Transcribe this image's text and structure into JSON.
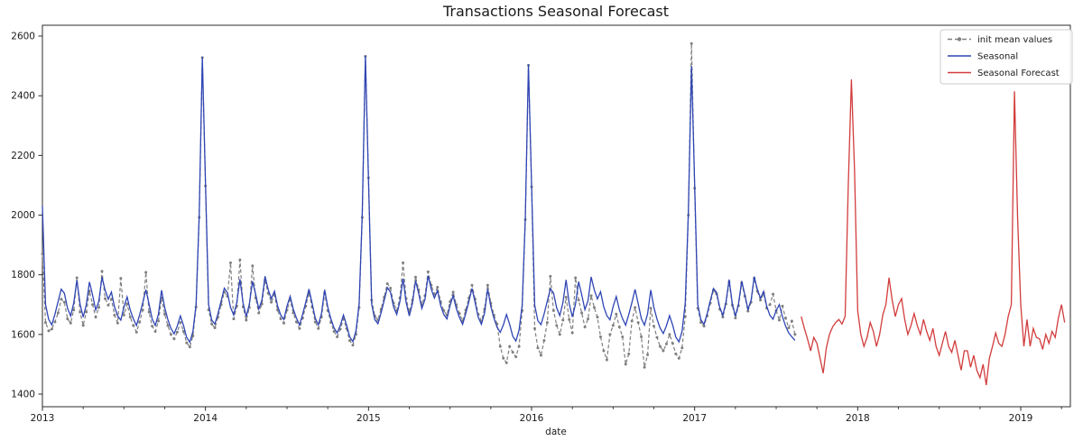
{
  "title": "Transactions Seasonal Forecast",
  "axes": {
    "xlabel": "date",
    "x_ticks": [
      2013,
      2014,
      2015,
      2016,
      2017,
      2018,
      2019
    ],
    "y_ticks": [
      1400,
      1600,
      1800,
      2000,
      2200,
      2400,
      2600
    ],
    "x_minor_step_years": 0.25,
    "x_range": [
      2013.0,
      2019.3
    ],
    "y_range": [
      1358,
      2636
    ]
  },
  "legend": {
    "position": "upper right",
    "items": [
      {
        "label": "init mean values",
        "color": "#7f7f7f",
        "style": "dashed-marker"
      },
      {
        "label": "Seasonal",
        "color": "#2f45b4",
        "style": "solid"
      },
      {
        "label": "Seasonal Forecast",
        "color": "#d23c3c",
        "style": "solid"
      }
    ]
  },
  "chart_data": {
    "type": "line",
    "title": "Transactions Seasonal Forecast",
    "xlabel": "date",
    "ylabel": "",
    "xlim": [
      2013.0,
      2019.3
    ],
    "ylim": [
      1358,
      2636
    ],
    "grid": false,
    "legend_position": "upper right",
    "x_step_years": 0.01923076923,
    "series": [
      {
        "name": "init mean values",
        "color": "#7f7f7f",
        "line_style": "dashed",
        "marker": "circle",
        "x_start": 2013.0,
        "values": [
          1870,
          1640,
          1612,
          1618,
          1642,
          1672,
          1718,
          1708,
          1652,
          1638,
          1682,
          1790,
          1675,
          1630,
          1675,
          1745,
          1700,
          1658,
          1690,
          1812,
          1720,
          1698,
          1718,
          1665,
          1638,
          1788,
          1665,
          1702,
          1658,
          1630,
          1608,
          1642,
          1682,
          1808,
          1675,
          1628,
          1610,
          1645,
          1722,
          1668,
          1630,
          1600,
          1585,
          1608,
          1640,
          1610,
          1572,
          1558,
          1595,
          1692,
          1992,
          2528,
          2098,
          1682,
          1635,
          1622,
          1658,
          1700,
          1742,
          1728,
          1840,
          1652,
          1695,
          1850,
          1692,
          1648,
          1690,
          1830,
          1722,
          1672,
          1702,
          1782,
          1738,
          1708,
          1732,
          1682,
          1652,
          1638,
          1682,
          1715,
          1672,
          1642,
          1620,
          1655,
          1695,
          1740,
          1692,
          1642,
          1620,
          1658,
          1738,
          1680,
          1640,
          1610,
          1592,
          1618,
          1652,
          1620,
          1580,
          1564,
          1600,
          1690,
          1992,
          2532,
          2125,
          1715,
          1662,
          1648,
          1685,
          1725,
          1770,
          1755,
          1705,
          1680,
          1722,
          1840,
          1720,
          1675,
          1715,
          1792,
          1750,
          1700,
          1730,
          1810,
          1765,
          1735,
          1758,
          1710,
          1680,
          1665,
          1710,
          1742,
          1700,
          1670,
          1645,
          1682,
          1722,
          1765,
          1718,
          1668,
          1645,
          1685,
          1765,
          1705,
          1665,
          1635,
          1560,
          1520,
          1505,
          1560,
          1540,
          1525,
          1560,
          1680,
          1985,
          2502,
          2095,
          1620,
          1555,
          1530,
          1580,
          1640,
          1795,
          1680,
          1630,
          1600,
          1648,
          1725,
          1650,
          1605,
          1790,
          1715,
          1672,
          1625,
          1652,
          1730,
          1690,
          1658,
          1592,
          1545,
          1515,
          1600,
          1630,
          1668,
          1625,
          1592,
          1500,
          1535,
          1645,
          1690,
          1640,
          1592,
          1490,
          1532,
          1688,
          1628,
          1590,
          1560,
          1545,
          1568,
          1600,
          1570,
          1535,
          1520,
          1555,
          1660,
          2000,
          2575,
          2090,
          1688,
          1640,
          1628,
          1662,
          1705,
          1748,
          1735,
          1685,
          1658,
          1702,
          1776,
          1698,
          1655,
          1696,
          1772,
          1728,
          1678,
          1708,
          1788,
          1745,
          1715,
          1738,
          1688,
          1700,
          1735,
          1680,
          1648,
          1695,
          1655,
          1622,
          1645,
          1600
        ]
      },
      {
        "name": "Seasonal",
        "color": "#2f45b4",
        "line_style": "solid",
        "marker": "none",
        "x_start": 2013.0,
        "values": [
          2030,
          1700,
          1650,
          1632,
          1668,
          1710,
          1752,
          1738,
          1688,
          1662,
          1706,
          1782,
          1702,
          1658,
          1700,
          1776,
          1732,
          1682,
          1712,
          1792,
          1748,
          1718,
          1742,
          1692,
          1662,
          1648,
          1692,
          1726,
          1682,
          1652,
          1630,
          1666,
          1706,
          1750,
          1702,
          1652,
          1630,
          1668,
          1748,
          1690,
          1650,
          1620,
          1602,
          1628,
          1662,
          1630,
          1590,
          1574,
          1610,
          1700,
          2000,
          2530,
          2110,
          1700,
          1648,
          1635,
          1670,
          1712,
          1755,
          1740,
          1690,
          1665,
          1708,
          1785,
          1705,
          1660,
          1702,
          1778,
          1735,
          1685,
          1715,
          1795,
          1750,
          1720,
          1745,
          1695,
          1665,
          1650,
          1695,
          1728,
          1685,
          1655,
          1632,
          1668,
          1708,
          1752,
          1705,
          1655,
          1632,
          1670,
          1750,
          1692,
          1652,
          1622,
          1605,
          1630,
          1665,
          1632,
          1592,
          1576,
          1612,
          1702,
          2005,
          2535,
          2112,
          1702,
          1650,
          1636,
          1672,
          1714,
          1757,
          1742,
          1692,
          1667,
          1710,
          1787,
          1707,
          1662,
          1704,
          1780,
          1737,
          1687,
          1717,
          1797,
          1752,
          1722,
          1747,
          1697,
          1667,
          1652,
          1697,
          1730,
          1687,
          1657,
          1634,
          1670,
          1710,
          1754,
          1707,
          1657,
          1634,
          1672,
          1752,
          1694,
          1654,
          1624,
          1607,
          1632,
          1667,
          1634,
          1594,
          1578,
          1614,
          1698,
          1990,
          2505,
          2100,
          1698,
          1646,
          1633,
          1669,
          1711,
          1753,
          1739,
          1689,
          1663,
          1707,
          1783,
          1703,
          1659,
          1701,
          1777,
          1733,
          1683,
          1713,
          1793,
          1749,
          1719,
          1743,
          1693,
          1663,
          1649,
          1693,
          1727,
          1683,
          1653,
          1631,
          1667,
          1707,
          1751,
          1703,
          1653,
          1631,
          1669,
          1749,
          1691,
          1651,
          1621,
          1603,
          1629,
          1663,
          1631,
          1591,
          1575,
          1611,
          1705,
          2010,
          2500,
          2105,
          1700,
          1649,
          1634,
          1670,
          1713,
          1754,
          1741,
          1691,
          1664,
          1709,
          1784,
          1704,
          1661,
          1703,
          1779,
          1734,
          1684,
          1714,
          1794,
          1751,
          1721,
          1744,
          1694,
          1664,
          1651,
          1680,
          1700,
          1660,
          1628,
          1605,
          1592,
          1580
        ]
      },
      {
        "name": "Seasonal Forecast",
        "color": "#d23c3c",
        "line_style": "solid",
        "marker": "none",
        "x_start": 2017.6538,
        "values": [
          1660,
          1620,
          1585,
          1545,
          1590,
          1570,
          1520,
          1470,
          1555,
          1600,
          1625,
          1640,
          1650,
          1635,
          1660,
          2100,
          2455,
          2150,
          1680,
          1600,
          1560,
          1590,
          1640,
          1610,
          1560,
          1600,
          1665,
          1700,
          1790,
          1715,
          1660,
          1700,
          1720,
          1650,
          1600,
          1630,
          1670,
          1630,
          1600,
          1650,
          1610,
          1580,
          1620,
          1560,
          1530,
          1570,
          1610,
          1560,
          1540,
          1580,
          1530,
          1480,
          1545,
          1545,
          1490,
          1530,
          1480,
          1455,
          1500,
          1430,
          1520,
          1560,
          1605,
          1570,
          1560,
          1600,
          1660,
          1700,
          2415,
          1990,
          1700,
          1560,
          1650,
          1560,
          1620,
          1590,
          1585,
          1550,
          1600,
          1570,
          1610,
          1590,
          1655,
          1700,
          1640
        ]
      }
    ]
  }
}
